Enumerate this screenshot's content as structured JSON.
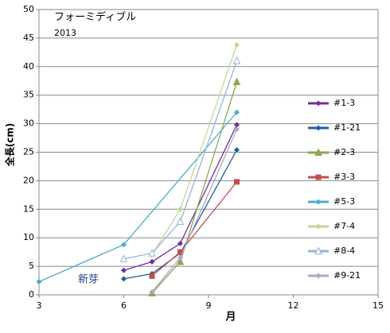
{
  "chart_data": {
    "type": "line",
    "title": "フォーミディブル",
    "subtitle": "2013",
    "annotation": "新芽",
    "x_label": "月",
    "y_label": "全長(cm)",
    "xlim": [
      3,
      15
    ],
    "xticks": [
      3,
      6,
      9,
      12,
      15
    ],
    "ylim": [
      0,
      50
    ],
    "yticks": [
      0,
      5,
      10,
      15,
      20,
      25,
      30,
      35,
      40,
      45,
      50
    ],
    "grid": true,
    "legend": "right",
    "series": [
      {
        "name": "#1-3",
        "color": "#7030a0",
        "marker": "diamond",
        "x": [
          6,
          7,
          8,
          10
        ],
        "values": [
          4.3,
          5.8,
          9,
          29.8
        ]
      },
      {
        "name": "#1-21",
        "color": "#1f5fa0",
        "marker": "diamond",
        "x": [
          6,
          7,
          8,
          10
        ],
        "values": [
          2.8,
          3.7,
          7.3,
          25.4
        ]
      },
      {
        "name": "#2-3",
        "color": "#8aa84a",
        "marker": "triangle",
        "x": [
          7,
          8,
          10
        ],
        "values": [
          0.3,
          5.8,
          37.3
        ]
      },
      {
        "name": "#3-3",
        "color": "#c0504d",
        "marker": "square",
        "x": [
          7,
          8,
          10
        ],
        "values": [
          3.3,
          7.5,
          19.8
        ]
      },
      {
        "name": "#5-3",
        "color": "#4bacc6",
        "marker": "diamond",
        "x": [
          3,
          6,
          10
        ],
        "values": [
          2.3,
          8.8,
          32
        ]
      },
      {
        "name": "#7-4",
        "color": "#c3d69b",
        "marker": "diamond",
        "x": [
          7,
          8,
          10
        ],
        "values": [
          7,
          15,
          43.8
        ]
      },
      {
        "name": "#8-4",
        "color": "#95b3d7",
        "marker": "triangle-open",
        "x": [
          6,
          7,
          8,
          10
        ],
        "values": [
          6.3,
          7.3,
          12.8,
          41
        ]
      },
      {
        "name": "#9-21",
        "color": "#b3a2c7",
        "marker": "diamond",
        "x": [
          7,
          8,
          10
        ],
        "values": [
          0.5,
          6.5,
          29
        ]
      }
    ]
  }
}
